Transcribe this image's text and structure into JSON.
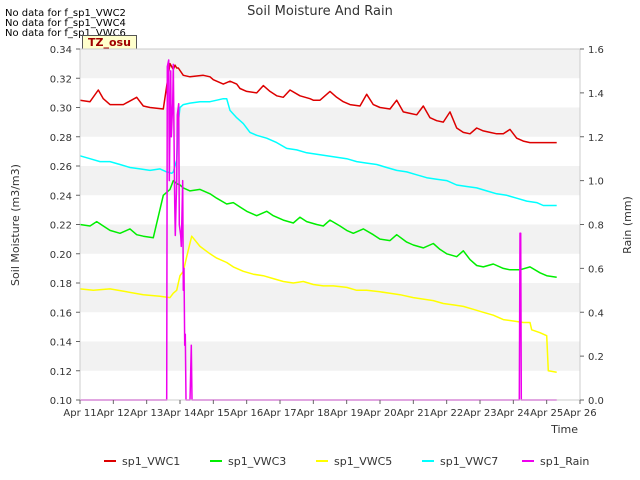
{
  "notes": [
    "No data for f_sp1_VWC2",
    "No data for f_sp1_VWC4",
    "No data for f_sp1_VWC6"
  ],
  "badge": "TZ_osu",
  "chart_data": {
    "type": "line",
    "title": "Soil Moisture And Rain",
    "xlabel": "Time",
    "ylabel": "Soil Moisture (m3/m3)",
    "y2label": "Rain (mm)",
    "xlim": [
      0,
      15
    ],
    "ylim": [
      0.1,
      0.34
    ],
    "y2lim": [
      0.0,
      1.6
    ],
    "xticks": [
      0,
      1,
      2,
      3,
      4,
      5,
      6,
      7,
      8,
      9,
      10,
      11,
      12,
      13,
      14,
      15
    ],
    "xticklabels": [
      "Apr 11",
      "Apr 12",
      "Apr 13",
      "Apr 14",
      "Apr 15",
      "Apr 16",
      "Apr 17",
      "Apr 18",
      "Apr 19",
      "Apr 20",
      "Apr 21",
      "Apr 22",
      "Apr 23",
      "Apr 24",
      "Apr 25",
      "Apr 26"
    ],
    "yticks": [
      0.1,
      0.12,
      0.14,
      0.16,
      0.18,
      0.2,
      0.22,
      0.24,
      0.26,
      0.28,
      0.3,
      0.32,
      0.34
    ],
    "yticklabels": [
      "0.10",
      "0.12",
      "0.14",
      "0.16",
      "0.18",
      "0.20",
      "0.22",
      "0.24",
      "0.26",
      "0.28",
      "0.30",
      "0.32",
      "0.34"
    ],
    "y2ticks": [
      0.0,
      0.2,
      0.4,
      0.6,
      0.8,
      1.0,
      1.2,
      1.4,
      1.6
    ],
    "y2ticklabels": [
      "0.0",
      "0.2",
      "0.4",
      "0.6",
      "0.8",
      "1.0",
      "1.2",
      "1.4",
      "1.6"
    ],
    "grid": "horizontal bands",
    "legend": "bottom",
    "series": [
      {
        "name": "sp1_VWC1",
        "color": "#dd0000",
        "axis": "left",
        "x": [
          0,
          0.3,
          0.55,
          0.7,
          0.9,
          1.3,
          1.7,
          1.9,
          2.1,
          2.5,
          2.7,
          2.8,
          2.85,
          2.9,
          2.95,
          3.1,
          3.3,
          3.7,
          3.9,
          4.0,
          4.3,
          4.5,
          4.7,
          4.8,
          5.0,
          5.3,
          5.5,
          5.7,
          5.9,
          6.1,
          6.3,
          6.6,
          6.9,
          7.0,
          7.2,
          7.5,
          7.7,
          7.9,
          8.1,
          8.4,
          8.6,
          8.8,
          9.0,
          9.3,
          9.5,
          9.7,
          9.9,
          10.1,
          10.3,
          10.5,
          10.7,
          10.9,
          11.1,
          11.3,
          11.5,
          11.7,
          11.9,
          12.1,
          12.3,
          12.5,
          12.7,
          12.9,
          13.1,
          13.3,
          13.5,
          13.7,
          13.9,
          14.0,
          14.1,
          14.3
        ],
        "y": [
          0.305,
          0.304,
          0.312,
          0.306,
          0.302,
          0.302,
          0.307,
          0.301,
          0.3,
          0.299,
          0.33,
          0.326,
          0.329,
          0.327,
          0.327,
          0.322,
          0.321,
          0.322,
          0.321,
          0.319,
          0.316,
          0.318,
          0.316,
          0.313,
          0.311,
          0.31,
          0.315,
          0.311,
          0.308,
          0.307,
          0.312,
          0.308,
          0.306,
          0.305,
          0.305,
          0.311,
          0.307,
          0.304,
          0.302,
          0.301,
          0.309,
          0.302,
          0.3,
          0.299,
          0.305,
          0.297,
          0.296,
          0.295,
          0.301,
          0.293,
          0.291,
          0.29,
          0.297,
          0.286,
          0.283,
          0.282,
          0.286,
          0.284,
          0.283,
          0.282,
          0.282,
          0.285,
          0.279,
          0.277,
          0.276,
          0.276,
          0.276,
          0.276,
          0.276,
          0.276
        ]
      },
      {
        "name": "sp1_VWC3",
        "color": "#00ee00",
        "axis": "left",
        "x": [
          0,
          0.3,
          0.5,
          0.7,
          0.9,
          1.2,
          1.5,
          1.7,
          1.9,
          2.2,
          2.5,
          2.7,
          2.8,
          2.9,
          3.0,
          3.1,
          3.3,
          3.6,
          3.9,
          4.1,
          4.4,
          4.6,
          4.8,
          5.0,
          5.3,
          5.6,
          5.8,
          6.1,
          6.4,
          6.6,
          6.8,
          7.1,
          7.3,
          7.5,
          7.8,
          8.0,
          8.2,
          8.5,
          8.8,
          9.0,
          9.3,
          9.5,
          9.8,
          10.0,
          10.3,
          10.6,
          10.8,
          11.0,
          11.3,
          11.5,
          11.7,
          11.9,
          12.1,
          12.4,
          12.7,
          12.9,
          13.2,
          13.5,
          13.8,
          14.0,
          14.3
        ],
        "y": [
          0.22,
          0.219,
          0.222,
          0.219,
          0.216,
          0.214,
          0.217,
          0.213,
          0.212,
          0.211,
          0.24,
          0.244,
          0.25,
          0.248,
          0.247,
          0.245,
          0.243,
          0.244,
          0.241,
          0.238,
          0.234,
          0.235,
          0.232,
          0.229,
          0.226,
          0.229,
          0.226,
          0.223,
          0.221,
          0.225,
          0.222,
          0.22,
          0.219,
          0.223,
          0.219,
          0.216,
          0.214,
          0.217,
          0.213,
          0.21,
          0.209,
          0.213,
          0.208,
          0.206,
          0.204,
          0.207,
          0.203,
          0.2,
          0.198,
          0.202,
          0.196,
          0.192,
          0.191,
          0.193,
          0.19,
          0.189,
          0.189,
          0.191,
          0.187,
          0.185,
          0.184
        ]
      },
      {
        "name": "sp1_VWC5",
        "color": "#ffff00",
        "axis": "left",
        "x": [
          0,
          0.4,
          0.9,
          1.4,
          1.9,
          2.4,
          2.7,
          2.8,
          2.9,
          3.0,
          3.1,
          3.2,
          3.35,
          3.6,
          3.9,
          4.1,
          4.4,
          4.6,
          4.9,
          5.2,
          5.5,
          5.8,
          6.1,
          6.4,
          6.7,
          7.0,
          7.3,
          7.6,
          8.0,
          8.3,
          8.6,
          9.0,
          9.3,
          9.6,
          10.0,
          10.3,
          10.6,
          10.9,
          11.2,
          11.5,
          11.8,
          12.1,
          12.4,
          12.7,
          13.0,
          13.3,
          13.5,
          13.55,
          13.8,
          14.0,
          14.05,
          14.3
        ],
        "y": [
          0.176,
          0.175,
          0.176,
          0.174,
          0.172,
          0.171,
          0.17,
          0.173,
          0.175,
          0.185,
          0.188,
          0.198,
          0.212,
          0.205,
          0.2,
          0.197,
          0.194,
          0.191,
          0.188,
          0.186,
          0.185,
          0.183,
          0.181,
          0.18,
          0.181,
          0.179,
          0.178,
          0.178,
          0.177,
          0.175,
          0.175,
          0.174,
          0.173,
          0.172,
          0.17,
          0.169,
          0.168,
          0.166,
          0.165,
          0.164,
          0.162,
          0.16,
          0.158,
          0.155,
          0.154,
          0.153,
          0.153,
          0.148,
          0.146,
          0.144,
          0.12,
          0.119
        ]
      },
      {
        "name": "sp1_VWC7",
        "color": "#00ffff",
        "axis": "left",
        "x": [
          0,
          0.3,
          0.6,
          0.9,
          1.2,
          1.5,
          1.8,
          2.1,
          2.4,
          2.6,
          2.75,
          2.8,
          2.85,
          2.9,
          2.95,
          3.0,
          3.1,
          3.3,
          3.6,
          3.9,
          4.1,
          4.3,
          4.4,
          4.5,
          4.7,
          4.9,
          5.1,
          5.3,
          5.6,
          5.9,
          6.2,
          6.5,
          6.8,
          7.1,
          7.4,
          7.7,
          8.0,
          8.3,
          8.6,
          8.9,
          9.2,
          9.5,
          9.8,
          10.1,
          10.4,
          10.7,
          11.0,
          11.3,
          11.6,
          11.9,
          12.2,
          12.5,
          12.8,
          13.1,
          13.4,
          13.7,
          13.9,
          14.1,
          14.3
        ],
        "y": [
          0.267,
          0.265,
          0.263,
          0.263,
          0.261,
          0.259,
          0.258,
          0.257,
          0.258,
          0.256,
          0.255,
          0.256,
          0.26,
          0.264,
          0.29,
          0.3,
          0.302,
          0.303,
          0.304,
          0.304,
          0.305,
          0.306,
          0.306,
          0.298,
          0.293,
          0.289,
          0.283,
          0.281,
          0.279,
          0.276,
          0.272,
          0.271,
          0.269,
          0.268,
          0.267,
          0.266,
          0.265,
          0.263,
          0.262,
          0.261,
          0.259,
          0.257,
          0.256,
          0.254,
          0.252,
          0.251,
          0.25,
          0.247,
          0.246,
          0.245,
          0.243,
          0.241,
          0.24,
          0.238,
          0.236,
          0.235,
          0.233,
          0.233,
          0.233
        ]
      },
      {
        "name": "sp1_Rain",
        "color": "#ee00ee",
        "axis": "right",
        "x": [
          0,
          2.6,
          2.62,
          2.66,
          2.68,
          2.72,
          2.74,
          2.78,
          2.8,
          2.84,
          2.86,
          2.9,
          2.92,
          2.96,
          2.98,
          3.02,
          3.04,
          3.08,
          3.1,
          3.12,
          3.14,
          3.16,
          3.18,
          3.22,
          3.24,
          3.28,
          3.3,
          3.34,
          3.36,
          3.4,
          3.42,
          3.46,
          3.48,
          13.18,
          13.2,
          13.22,
          13.24,
          14.3
        ],
        "y": [
          0,
          0,
          1.52,
          1.55,
          1.0,
          1.5,
          1.2,
          1.35,
          1.53,
          0.9,
          0.75,
          1.0,
          1.3,
          1.35,
          0.8,
          0.75,
          0.7,
          1.0,
          0.5,
          0.6,
          0.25,
          0.3,
          0,
          0,
          0,
          0,
          0,
          0.25,
          0,
          0,
          0,
          0,
          0,
          0,
          0.76,
          0.76,
          0,
          0
        ]
      }
    ]
  }
}
